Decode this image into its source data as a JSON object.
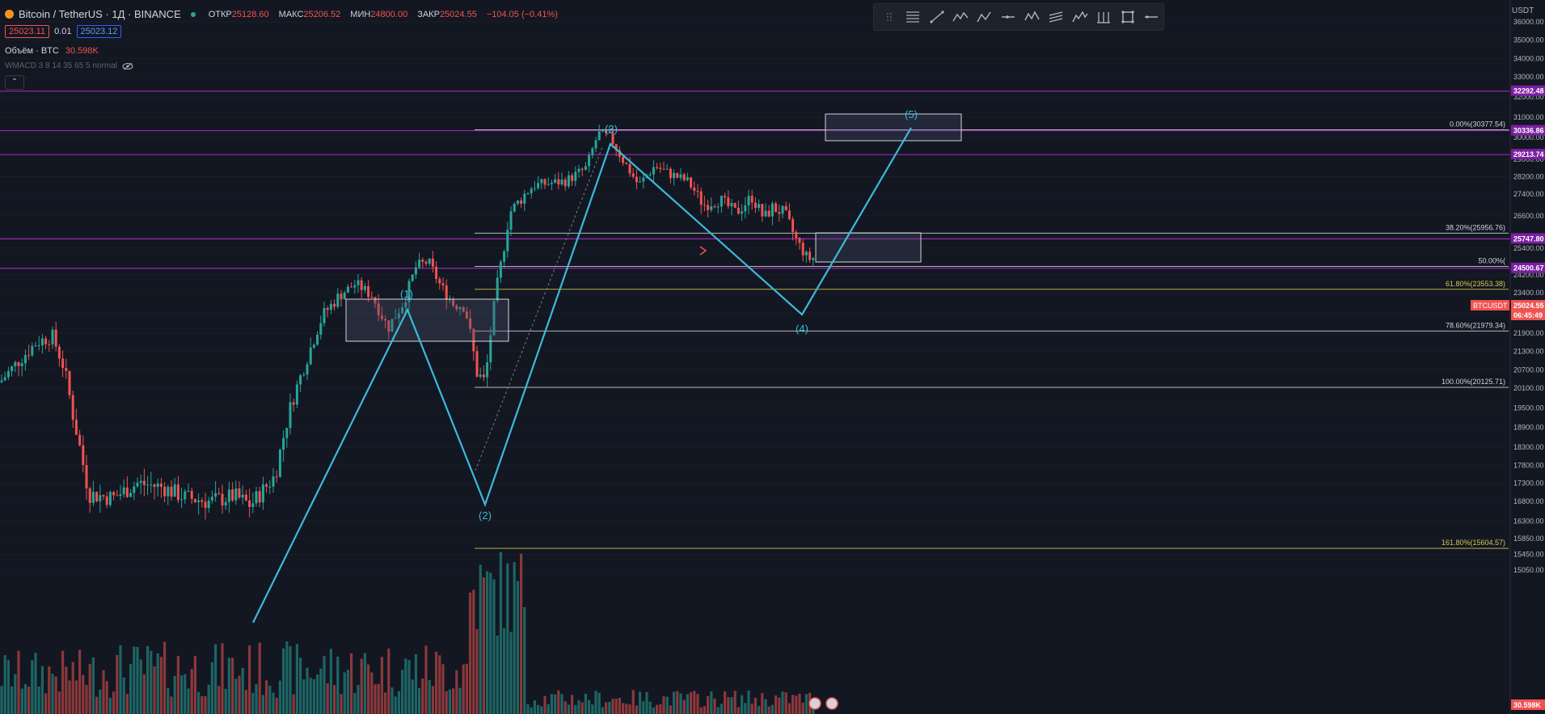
{
  "header": {
    "symbol": "Bitcoin / TetherUS · 1Д · BINANCE",
    "ohlc": [
      {
        "label": "ОТКР",
        "value": "25128.60"
      },
      {
        "label": "МАКС",
        "value": "25206.52"
      },
      {
        "label": "МИН",
        "value": "24800.00"
      },
      {
        "label": "ЗАКР",
        "value": "25024.55"
      }
    ],
    "change": "−104.05 (−0.41%)",
    "sell_price": "25023.11",
    "spread": "0.01",
    "buy_price": "25023.12",
    "volume_label": "Объём · BTC",
    "volume_value": "30.598K",
    "indicator": "WMACD 3 8 14 35 65 5 normal",
    "collapse_glyph": "⌃"
  },
  "currency": "USDT",
  "toolbar": {
    "items": [
      "drag-handle-icon",
      "fib-retracement-icon",
      "trend-line-icon",
      "polyline-icon",
      "abcd-pattern-icon",
      "horizontal-ray-icon",
      "xabcd-pattern-icon",
      "fib-channel-icon",
      "elliott-wave-icon",
      "pitchfork-icon",
      "rectangle-icon",
      "more-icon"
    ]
  },
  "colors": {
    "background": "#131722",
    "up": "#26a69a",
    "down": "#ef5350",
    "wave": "#3bbbd8",
    "purple": "#9c27b0",
    "fib_yellow": "#d4c94a",
    "fib_white": "#d1d4dc"
  },
  "price_axis": {
    "ticks": [
      "36000.00",
      "35000.00",
      "34000.00",
      "33000.00",
      "32000.00",
      "31000.00",
      "30000.00",
      "29000.00",
      "28200.00",
      "27400.00",
      "26600.00",
      "25400.00",
      "24200.00",
      "23400.00",
      "22650.00",
      "21900.00",
      "21300.00",
      "20700.00",
      "20100.00",
      "19500.00",
      "18900.00",
      "18300.00",
      "17800.00",
      "17300.00",
      "16800.00",
      "16300.00",
      "15850.00",
      "15450.00",
      "15050.00"
    ],
    "badges": [
      {
        "label": "32292.48",
        "style": "purple"
      },
      {
        "label": "30336.86",
        "style": "purple"
      },
      {
        "label": "29213.74",
        "style": "purple"
      },
      {
        "label": "25747.80",
        "style": "purple"
      },
      {
        "label": "25024.55",
        "style": "red"
      },
      {
        "label": "06:45:49",
        "style": "red"
      },
      {
        "label": "24500.67",
        "style": "purple"
      },
      {
        "label": "30.598K",
        "style": "red"
      }
    ],
    "ticker_tag": "BTCUSDT"
  },
  "fib_levels": [
    {
      "label": "0.00%(30377.54)",
      "price": 30377.54,
      "color": "white"
    },
    {
      "label": "38.20%(25956.76)",
      "price": 25956.76,
      "color": "white"
    },
    {
      "label": "50.00%(",
      "price": 24584,
      "color": "white"
    },
    {
      "label": "61.80%(23553.38)",
      "price": 23553.38,
      "color": "yellow"
    },
    {
      "label": "78.60%(21979.34)",
      "price": 21979.34,
      "color": "white"
    },
    {
      "label": "100.00%(20125.71)",
      "price": 20125.71,
      "color": "white"
    },
    {
      "label": "161.80%(15604.57)",
      "price": 15604.57,
      "color": "yellow"
    }
  ],
  "horizontal_levels": [
    32292.48,
    30336.86,
    29213.74,
    25747.8,
    24500.67
  ],
  "elliott_waves": [
    "(1)",
    "(2)",
    "(3)",
    "(4)",
    "(5)"
  ]
}
